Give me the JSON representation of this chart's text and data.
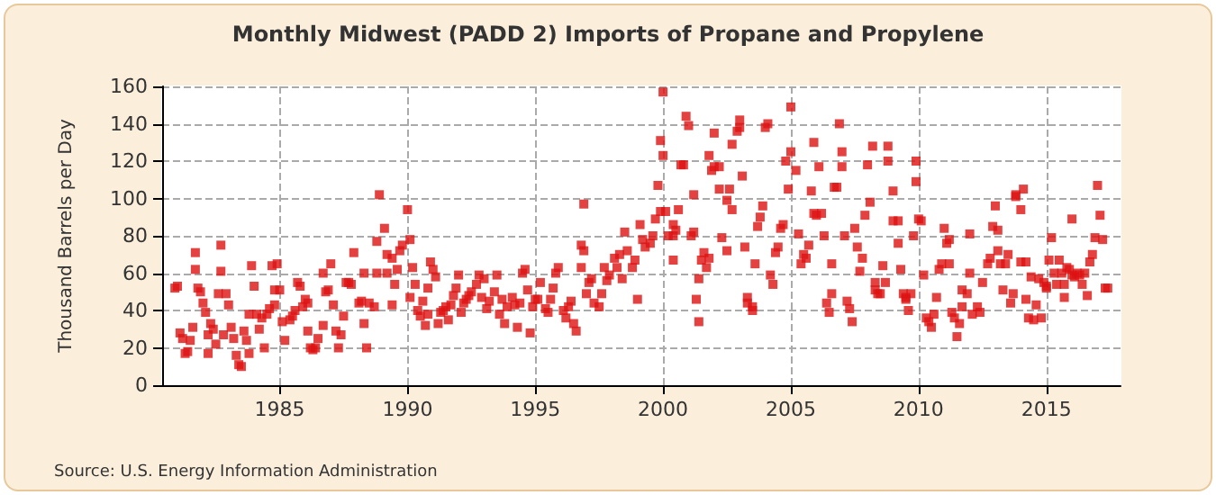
{
  "chart_data": {
    "type": "scatter",
    "title": "Monthly Midwest (PADD 2) Imports of Propane and Propylene",
    "ylabel": "Thousand Barrels per Day",
    "annotations": [
      "Source: U.S. Energy Information Administration"
    ],
    "xlim": [
      1980.4,
      2017.9
    ],
    "xticks": [
      1985,
      1990,
      1995,
      2000,
      2005,
      2010,
      2015
    ],
    "ylim": [
      0,
      160
    ],
    "yticks": [
      0,
      20,
      40,
      60,
      80,
      100,
      120,
      140,
      160
    ],
    "grid": true,
    "marker": "square",
    "series": [
      {
        "color": "#dd1111",
        "x": [
          1980.9,
          1981.0,
          1981.1,
          1981.2,
          1981.3,
          1981.4,
          1981.5,
          1981.6,
          1981.7,
          1981.7,
          1981.8,
          1981.9,
          1982.0,
          1982.1,
          1982.2,
          1982.2,
          1982.3,
          1982.4,
          1982.5,
          1982.6,
          1982.7,
          1982.7,
          1982.8,
          1982.9,
          1983.0,
          1983.1,
          1983.2,
          1983.3,
          1983.4,
          1983.5,
          1983.6,
          1983.7,
          1983.8,
          1983.8,
          1983.9,
          1984.0,
          1984.1,
          1984.2,
          1984.3,
          1984.4,
          1984.5,
          1984.6,
          1984.7,
          1984.8,
          1984.8,
          1984.9,
          1985.0,
          1985.1,
          1985.2,
          1985.4,
          1985.5,
          1985.6,
          1985.7,
          1985.8,
          1985.9,
          1986.0,
          1986.1,
          1986.1,
          1986.2,
          1986.3,
          1986.4,
          1986.5,
          1986.7,
          1986.7,
          1986.8,
          1986.9,
          1987.0,
          1987.1,
          1987.2,
          1987.3,
          1987.4,
          1987.5,
          1987.6,
          1987.7,
          1987.8,
          1987.9,
          1988.1,
          1988.2,
          1988.3,
          1988.3,
          1988.4,
          1988.5,
          1988.7,
          1988.8,
          1988.8,
          1988.9,
          1989.1,
          1989.2,
          1989.2,
          1989.4,
          1989.4,
          1989.5,
          1989.6,
          1989.7,
          1989.8,
          1990.0,
          1990.1,
          1990.1,
          1990.2,
          1990.3,
          1990.4,
          1990.5,
          1990.6,
          1990.7,
          1990.8,
          1990.8,
          1990.9,
          1991.0,
          1991.1,
          1991.2,
          1991.3,
          1991.4,
          1991.5,
          1991.6,
          1991.7,
          1991.8,
          1991.9,
          1992.0,
          1992.1,
          1992.2,
          1992.3,
          1992.4,
          1992.5,
          1992.7,
          1992.8,
          1992.9,
          1993.0,
          1993.1,
          1993.2,
          1993.4,
          1993.5,
          1993.6,
          1993.7,
          1993.8,
          1993.9,
          1994.1,
          1994.2,
          1994.3,
          1994.4,
          1994.5,
          1994.6,
          1994.7,
          1994.8,
          1994.9,
          1995.0,
          1995.1,
          1995.2,
          1995.4,
          1995.5,
          1995.6,
          1995.7,
          1995.8,
          1995.9,
          1996.1,
          1996.2,
          1996.3,
          1996.4,
          1996.5,
          1996.6,
          1996.8,
          1996.8,
          1996.9,
          1996.9,
          1997.0,
          1997.1,
          1997.2,
          1997.3,
          1997.5,
          1997.6,
          1997.7,
          1997.8,
          1997.9,
          1998.1,
          1998.2,
          1998.3,
          1998.4,
          1998.5,
          1998.6,
          1998.8,
          1998.9,
          1999.0,
          1999.1,
          1999.2,
          1999.3,
          1999.5,
          1999.6,
          1999.7,
          1999.8,
          1999.9,
          1999.9,
          2000.0,
          2000.0,
          2000.1,
          2000.2,
          2000.4,
          2000.4,
          2000.4,
          2000.5,
          2000.6,
          2000.7,
          2000.8,
          2000.9,
          2001.0,
          2001.1,
          2001.2,
          2001.2,
          2001.3,
          2001.4,
          2001.4,
          2001.5,
          2001.6,
          2001.7,
          2001.8,
          2001.8,
          2001.9,
          2002.0,
          2002.0,
          2002.2,
          2002.2,
          2002.3,
          2002.5,
          2002.5,
          2002.6,
          2002.7,
          2002.7,
          2002.9,
          2003.0,
          2003.0,
          2003.1,
          2003.2,
          2003.3,
          2003.3,
          2003.5,
          2003.5,
          2003.6,
          2003.7,
          2003.8,
          2003.9,
          2004.0,
          2004.1,
          2004.2,
          2004.3,
          2004.4,
          2004.5,
          2004.6,
          2004.7,
          2004.8,
          2004.9,
          2005.0,
          2005.0,
          2005.2,
          2005.3,
          2005.4,
          2005.5,
          2005.6,
          2005.7,
          2005.8,
          2005.9,
          2005.9,
          2006.0,
          2006.1,
          2006.2,
          2006.3,
          2006.4,
          2006.5,
          2006.6,
          2006.6,
          2006.7,
          2006.8,
          2006.9,
          2007.0,
          2007.0,
          2007.1,
          2007.2,
          2007.3,
          2007.4,
          2007.5,
          2007.6,
          2007.7,
          2007.8,
          2007.9,
          2008.0,
          2008.1,
          2008.2,
          2008.3,
          2008.3,
          2008.4,
          2008.5,
          2008.6,
          2008.7,
          2008.8,
          2008.8,
          2009.0,
          2009.0,
          2009.2,
          2009.2,
          2009.3,
          2009.4,
          2009.5,
          2009.5,
          2009.6,
          2009.7,
          2009.8,
          2009.9,
          2009.9,
          2010.0,
          2010.1,
          2010.2,
          2010.3,
          2010.4,
          2010.5,
          2010.6,
          2010.7,
          2010.8,
          2010.9,
          2011.0,
          2011.1,
          2011.2,
          2011.2,
          2011.3,
          2011.4,
          2011.5,
          2011.6,
          2011.7,
          2011.7,
          2011.9,
          2012.0,
          2012.0,
          2012.1,
          2012.3,
          2012.4,
          2012.5,
          2012.7,
          2012.8,
          2012.9,
          2013.0,
          2013.1,
          2013.1,
          2013.2,
          2013.3,
          2013.4,
          2013.5,
          2013.6,
          2013.7,
          2013.8,
          2013.8,
          2014.0,
          2014.0,
          2014.1,
          2014.2,
          2014.2,
          2014.3,
          2014.4,
          2014.5,
          2014.6,
          2014.7,
          2014.8,
          2014.9,
          2015.0,
          2015.0,
          2015.1,
          2015.2,
          2015.3,
          2015.4,
          2015.5,
          2015.6,
          2015.7,
          2015.7,
          2015.8,
          2015.9,
          2016.0,
          2016.0,
          2016.1,
          2016.2,
          2016.3,
          2016.4,
          2016.5,
          2016.6,
          2016.7,
          2016.8,
          2016.9,
          2017.0,
          2017.1,
          2017.2,
          2017.3,
          2017.4
        ],
        "values": [
          52,
          53,
          28,
          25,
          17,
          18,
          24,
          31,
          71,
          62,
          52,
          50,
          44,
          39,
          17,
          27,
          33,
          30,
          22,
          49,
          61,
          75,
          27,
          49,
          43,
          31,
          25,
          16,
          11,
          10,
          29,
          24,
          17,
          38,
          64,
          53,
          38,
          30,
          36,
          20,
          38,
          41,
          64,
          43,
          51,
          65,
          51,
          34,
          24,
          35,
          37,
          40,
          55,
          53,
          42,
          46,
          44,
          29,
          20,
          19,
          20,
          25,
          32,
          60,
          50,
          51,
          65,
          43,
          29,
          20,
          27,
          37,
          55,
          55,
          54,
          71,
          44,
          45,
          60,
          33,
          20,
          44,
          42,
          60,
          77,
          102,
          84,
          70,
          60,
          68,
          43,
          54,
          62,
          72,
          75,
          94,
          78,
          47,
          63,
          54,
          40,
          37,
          45,
          32,
          52,
          38,
          66,
          62,
          58,
          33,
          39,
          40,
          42,
          35,
          43,
          48,
          52,
          59,
          39,
          44,
          46,
          48,
          50,
          54,
          59,
          47,
          57,
          41,
          45,
          50,
          59,
          38,
          46,
          33,
          42,
          47,
          43,
          31,
          44,
          60,
          62,
          51,
          28,
          42,
          46,
          46,
          55,
          41,
          39,
          46,
          52,
          60,
          63,
          40,
          36,
          42,
          45,
          33,
          29,
          63,
          75,
          72,
          97,
          49,
          55,
          57,
          44,
          42,
          49,
          63,
          56,
          59,
          68,
          63,
          70,
          57,
          82,
          72,
          63,
          67,
          46,
          86,
          78,
          74,
          76,
          80,
          89,
          107,
          93,
          131,
          157,
          123,
          93,
          80,
          80,
          67,
          86,
          83,
          94,
          118,
          118,
          144,
          139,
          80,
          102,
          82,
          46,
          34,
          57,
          67,
          71,
          63,
          68,
          123,
          115,
          117,
          135,
          117,
          105,
          79,
          72,
          99,
          105,
          94,
          129,
          136,
          142,
          138,
          112,
          74,
          44,
          47,
          42,
          40,
          65,
          85,
          90,
          96,
          138,
          140,
          59,
          54,
          71,
          74,
          84,
          86,
          120,
          105,
          125,
          149,
          115,
          81,
          65,
          70,
          68,
          75,
          104,
          92,
          130,
          91,
          117,
          92,
          80,
          44,
          39,
          49,
          65,
          106,
          106,
          140,
          117,
          125,
          80,
          45,
          41,
          34,
          84,
          74,
          61,
          68,
          91,
          118,
          98,
          128,
          55,
          51,
          49,
          49,
          64,
          55,
          128,
          120,
          104,
          88,
          76,
          88,
          62,
          49,
          46,
          47,
          40,
          49,
          80,
          120,
          109,
          89,
          88,
          59,
          36,
          34,
          31,
          38,
          47,
          62,
          65,
          84,
          76,
          78,
          65,
          39,
          36,
          26,
          33,
          42,
          51,
          49,
          81,
          60,
          38,
          42,
          39,
          55,
          65,
          68,
          85,
          96,
          83,
          72,
          65,
          51,
          65,
          70,
          44,
          49,
          102,
          101,
          66,
          94,
          105,
          66,
          46,
          36,
          58,
          35,
          43,
          57,
          36,
          55,
          53,
          52,
          67,
          79,
          60,
          54,
          67,
          60,
          47,
          54,
          63,
          62,
          59,
          89,
          58,
          60,
          59,
          54,
          60,
          48,
          66,
          70,
          79,
          107,
          91,
          78,
          52,
          52
        ]
      }
    ]
  }
}
